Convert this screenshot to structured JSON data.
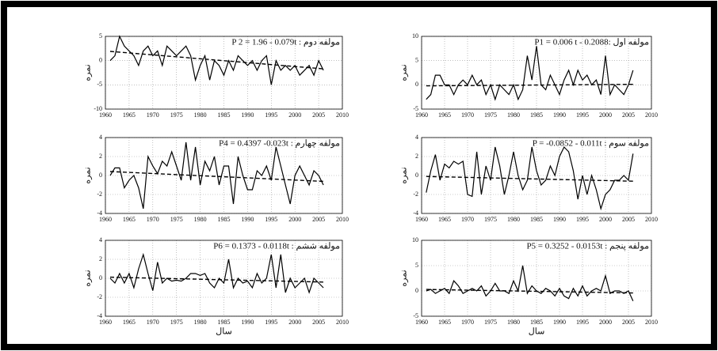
{
  "chart_data": [
    {
      "type": "line",
      "title": "P 2 = 1.96 - 0.079t : مولفه دوم",
      "y_label": "نمره",
      "x": [
        1961,
        1962,
        1963,
        1964,
        1965,
        1966,
        1967,
        1968,
        1969,
        1970,
        1971,
        1972,
        1973,
        1974,
        1975,
        1976,
        1977,
        1978,
        1979,
        1980,
        1981,
        1982,
        1983,
        1984,
        1985,
        1986,
        1987,
        1988,
        1989,
        1990,
        1991,
        1992,
        1993,
        1994,
        1995,
        1996,
        1997,
        1998,
        1999,
        2000,
        2001,
        2002,
        2003,
        2004,
        2005,
        2006
      ],
      "series": [
        {
          "color": "#000000",
          "values": [
            0,
            1,
            5,
            3,
            2,
            1,
            -1,
            2,
            3,
            1,
            2,
            -1,
            3,
            2,
            1,
            2,
            3,
            1,
            -4,
            -1,
            1,
            -4,
            0,
            -1,
            -3,
            0,
            -2,
            1,
            0,
            -1,
            0,
            -2,
            0,
            1,
            -5,
            0,
            -2,
            -1,
            -2,
            -1,
            -3,
            -2,
            -1,
            -3,
            0,
            -2
          ]
        }
      ],
      "trend": {
        "x": [
          1961,
          2006
        ],
        "values": [
          1.9,
          -1.7
        ],
        "dashed": true
      },
      "xlim": [
        1960,
        2010
      ],
      "xticks": [
        1960,
        1965,
        1970,
        1975,
        1980,
        1985,
        1990,
        1995,
        2000,
        2005,
        2010
      ],
      "ylim": [
        -10,
        5
      ],
      "yticks": [
        -10,
        -5,
        0,
        5
      ],
      "grid": true
    },
    {
      "type": "line",
      "title": "P1 = 0.006 t - 0.2088: مولفه اول",
      "y_label": "نمره",
      "x": [
        1961,
        1962,
        1963,
        1964,
        1965,
        1966,
        1967,
        1968,
        1969,
        1970,
        1971,
        1972,
        1973,
        1974,
        1975,
        1976,
        1977,
        1978,
        1979,
        1980,
        1981,
        1982,
        1983,
        1984,
        1985,
        1986,
        1987,
        1988,
        1989,
        1990,
        1991,
        1992,
        1993,
        1994,
        1995,
        1996,
        1997,
        1998,
        1999,
        2000,
        2001,
        2002,
        2003,
        2004,
        2005,
        2006
      ],
      "series": [
        {
          "color": "#000000",
          "values": [
            -3,
            -2,
            2,
            2,
            0,
            0,
            -2,
            0,
            1,
            0,
            2,
            0,
            1,
            -2,
            0,
            -3,
            0,
            -1,
            -2,
            0,
            -3,
            -1,
            6,
            1,
            8,
            0,
            -1,
            2,
            0,
            -2,
            1,
            3,
            0,
            3,
            1,
            2,
            0,
            1,
            -2,
            6,
            -2,
            0,
            -1,
            -2,
            0,
            3
          ]
        }
      ],
      "trend": {
        "x": [
          1961,
          2006
        ],
        "values": [
          -0.2,
          0.1
        ],
        "dashed": true
      },
      "xlim": [
        1960,
        2010
      ],
      "xticks": [
        1960,
        1965,
        1970,
        1975,
        1980,
        1985,
        1990,
        1995,
        2000,
        2005,
        2010
      ],
      "ylim": [
        -5,
        10
      ],
      "yticks": [
        -5,
        0,
        5,
        10
      ],
      "grid": true
    },
    {
      "type": "line",
      "title": "P4 = 0.4397 -0.023t : مولفه چهارم",
      "y_label": "نمره",
      "x": [
        1961,
        1962,
        1963,
        1964,
        1965,
        1966,
        1967,
        1968,
        1969,
        1970,
        1971,
        1972,
        1973,
        1974,
        1975,
        1976,
        1977,
        1978,
        1979,
        1980,
        1981,
        1982,
        1983,
        1984,
        1985,
        1986,
        1987,
        1988,
        1989,
        1990,
        1991,
        1992,
        1993,
        1994,
        1995,
        1996,
        1997,
        1998,
        1999,
        2000,
        2001,
        2002,
        2003,
        2004,
        2005,
        2006
      ],
      "series": [
        {
          "color": "#000000",
          "values": [
            0,
            0.8,
            0.8,
            -1.3,
            -0.5,
            0,
            -1.3,
            -3.5,
            2,
            1,
            0.2,
            1.5,
            1,
            2.5,
            1,
            -0.5,
            3.5,
            -0.5,
            3,
            -1,
            1.5,
            0.5,
            2,
            -1,
            1,
            1,
            -3,
            2,
            0,
            -1.5,
            -1.5,
            0.5,
            0,
            1,
            -0.5,
            3,
            1,
            -1,
            -3,
            0,
            1,
            0,
            -1,
            0.5,
            0,
            -1
          ]
        }
      ],
      "trend": {
        "x": [
          1961,
          2006
        ],
        "values": [
          0.42,
          -0.62
        ],
        "dashed": true
      },
      "xlim": [
        1960,
        2010
      ],
      "xticks": [
        1960,
        1965,
        1970,
        1975,
        1980,
        1985,
        1990,
        1995,
        2000,
        2005,
        2010
      ],
      "ylim": [
        -4,
        4
      ],
      "yticks": [
        -4,
        -2,
        0,
        2,
        4
      ],
      "grid": true
    },
    {
      "type": "line",
      "title": "P = -0.0852 - 0.011t : مولفه سوم",
      "y_label": "نمره",
      "x": [
        1961,
        1962,
        1963,
        1964,
        1965,
        1966,
        1967,
        1968,
        1969,
        1970,
        1971,
        1972,
        1973,
        1974,
        1975,
        1976,
        1977,
        1978,
        1979,
        1980,
        1981,
        1982,
        1983,
        1984,
        1985,
        1986,
        1987,
        1988,
        1989,
        1990,
        1991,
        1992,
        1993,
        1994,
        1995,
        1996,
        1997,
        1998,
        1999,
        2000,
        2001,
        2002,
        2003,
        2004,
        2005,
        2006
      ],
      "series": [
        {
          "color": "#000000",
          "values": [
            -1.8,
            0.5,
            2.2,
            -0.5,
            1.2,
            0.8,
            1.5,
            1.2,
            1.5,
            -2,
            -2.2,
            2.5,
            -2,
            1,
            -0.5,
            3,
            1,
            -2,
            0,
            2.5,
            0,
            -1.5,
            -0.5,
            3,
            0.5,
            -1,
            -0.5,
            1,
            0,
            2,
            3,
            2.5,
            0.5,
            -2.5,
            0,
            -2,
            0,
            -1.5,
            -3.5,
            -2,
            -1.5,
            -0.5,
            -0.5,
            0,
            -0.5,
            2.3
          ]
        }
      ],
      "trend": {
        "x": [
          1961,
          2006
        ],
        "values": [
          -0.1,
          -0.6
        ],
        "dashed": true
      },
      "xlim": [
        1960,
        2010
      ],
      "xticks": [
        1960,
        1965,
        1970,
        1975,
        1980,
        1985,
        1990,
        1995,
        2000,
        2005,
        2010
      ],
      "ylim": [
        -4,
        4
      ],
      "yticks": [
        -4,
        -2,
        0,
        2,
        4
      ],
      "grid": true
    },
    {
      "type": "line",
      "title": "P6 = 0.1373 - 0.0118t : مولفه ششم",
      "y_label": "نمره",
      "x_label": "سال",
      "x": [
        1961,
        1962,
        1963,
        1964,
        1965,
        1966,
        1967,
        1968,
        1969,
        1970,
        1971,
        1972,
        1973,
        1974,
        1975,
        1976,
        1977,
        1978,
        1979,
        1980,
        1981,
        1982,
        1983,
        1984,
        1985,
        1986,
        1987,
        1988,
        1989,
        1990,
        1991,
        1992,
        1993,
        1994,
        1995,
        1996,
        1997,
        1998,
        1999,
        2000,
        2001,
        2002,
        2003,
        2004,
        2005,
        2006
      ],
      "series": [
        {
          "color": "#000000",
          "values": [
            0,
            -0.5,
            0.5,
            -0.5,
            0.5,
            -1,
            1,
            2.5,
            0.5,
            -1.3,
            1.7,
            -0.5,
            0,
            -0.3,
            -0.2,
            -0.3,
            0,
            0.5,
            0.5,
            0.3,
            0.5,
            -0.5,
            -1,
            0,
            -0.5,
            2,
            -1,
            0,
            -0.5,
            -0.3,
            -1,
            0.5,
            -0.5,
            0,
            2.5,
            -1,
            2.5,
            -1.5,
            0,
            -1,
            -0.5,
            0,
            -1.5,
            0,
            -0.5,
            -1
          ]
        }
      ],
      "trend": {
        "x": [
          1961,
          2006
        ],
        "values": [
          0.12,
          -0.4
        ],
        "dashed": true
      },
      "xlim": [
        1960,
        2010
      ],
      "xticks": [
        1960,
        1965,
        1970,
        1975,
        1980,
        1985,
        1990,
        1995,
        2000,
        2005,
        2010
      ],
      "ylim": [
        -4,
        4
      ],
      "yticks": [
        -4,
        -2,
        0,
        2,
        4
      ],
      "grid": true
    },
    {
      "type": "line",
      "title": "P5 = 0.3252 - 0.0153t : مولفه پنجم",
      "y_label": "نمره",
      "x_label": "سال",
      "x": [
        1961,
        1962,
        1963,
        1964,
        1965,
        1966,
        1967,
        1968,
        1969,
        1970,
        1971,
        1972,
        1973,
        1974,
        1975,
        1976,
        1977,
        1978,
        1979,
        1980,
        1981,
        1982,
        1983,
        1984,
        1985,
        1986,
        1987,
        1988,
        1989,
        1990,
        1991,
        1992,
        1993,
        1994,
        1995,
        1996,
        1997,
        1998,
        1999,
        2000,
        2001,
        2002,
        2003,
        2004,
        2005,
        2006
      ],
      "series": [
        {
          "color": "#000000",
          "values": [
            0,
            0.3,
            -0.5,
            0,
            0.5,
            -0.5,
            2,
            1,
            -0.5,
            0,
            0.5,
            0,
            1,
            -1,
            0,
            1.5,
            0,
            0,
            -0.5,
            2,
            0,
            5,
            -0.5,
            1,
            0,
            -0.5,
            0.5,
            0,
            -1,
            0.5,
            -1,
            -1.5,
            0.5,
            -1,
            1,
            -1,
            0,
            0.5,
            0,
            3,
            -0.5,
            0,
            0,
            -0.5,
            0,
            -2
          ]
        }
      ],
      "trend": {
        "x": [
          1961,
          2006
        ],
        "values": [
          0.3,
          -0.4
        ],
        "dashed": true
      },
      "xlim": [
        1960,
        2010
      ],
      "xticks": [
        1960,
        1965,
        1970,
        1975,
        1980,
        1985,
        1990,
        1995,
        2000,
        2005,
        2010
      ],
      "ylim": [
        -5,
        10
      ],
      "yticks": [
        -5,
        0,
        5,
        10
      ],
      "grid": true
    }
  ]
}
